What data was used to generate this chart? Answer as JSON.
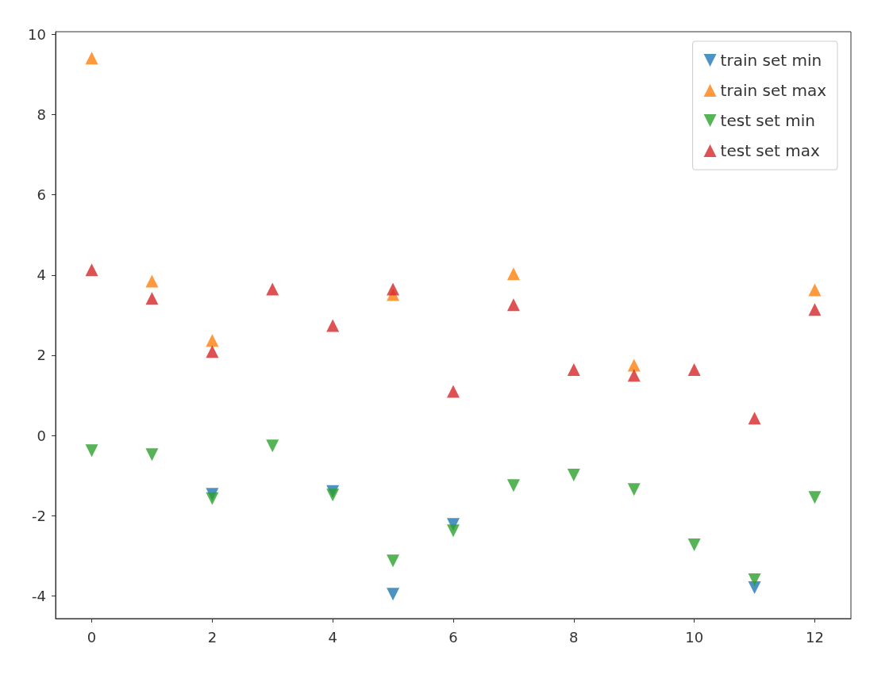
{
  "chart_data": {
    "type": "scatter",
    "x": [
      0,
      1,
      2,
      3,
      4,
      5,
      6,
      7,
      8,
      9,
      10,
      11,
      12
    ],
    "series": [
      {
        "name": "train set min",
        "color": "#1f77b4",
        "marker": "triangle-down",
        "values": [
          null,
          null,
          -1.47,
          null,
          -1.4,
          -3.96,
          -2.22,
          null,
          null,
          null,
          null,
          -3.8,
          null
        ]
      },
      {
        "name": "train set max",
        "color": "#ff7f0e",
        "marker": "triangle",
        "values": [
          9.41,
          3.85,
          2.37,
          null,
          null,
          3.51,
          null,
          4.03,
          null,
          1.75,
          null,
          null,
          3.63
        ]
      },
      {
        "name": "test set min",
        "color": "#2ca02c",
        "marker": "triangle-down",
        "values": [
          -0.38,
          -0.48,
          -1.58,
          -0.26,
          -1.49,
          -3.13,
          -2.38,
          -1.25,
          -0.99,
          -1.35,
          -2.73,
          -3.6,
          -1.55
        ]
      },
      {
        "name": "test set max",
        "color": "#d62728",
        "marker": "triangle",
        "values": [
          4.13,
          3.42,
          2.09,
          3.65,
          2.74,
          3.65,
          1.1,
          3.26,
          1.64,
          1.5,
          1.64,
          0.43,
          3.14
        ]
      }
    ],
    "xlim": [
      -0.6,
      12.6
    ],
    "xticks": [
      0,
      2,
      4,
      6,
      8,
      10,
      12
    ],
    "ylim": [
      -4.57,
      10.07
    ],
    "yticks": [
      -4,
      -2,
      0,
      2,
      4,
      6,
      8,
      10
    ],
    "grid": false,
    "legend": "top right"
  }
}
